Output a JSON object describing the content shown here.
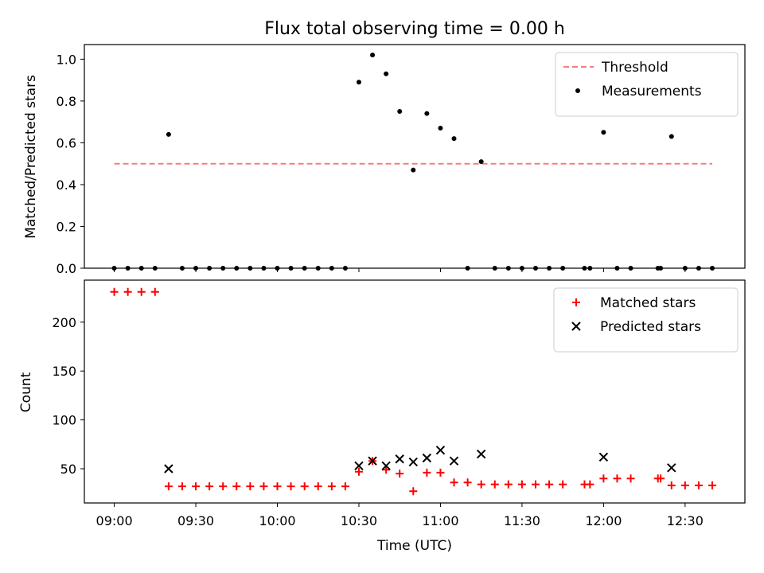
{
  "chart_data": {
    "title": "Flux total observing time = 0.00 h",
    "xlabel": "Time (UTC)",
    "x_ticks": [
      "09:00",
      "09:30",
      "10:00",
      "10:30",
      "11:00",
      "11:30",
      "12:00",
      "12:30"
    ],
    "x_tick_minutes": [
      0,
      30,
      60,
      90,
      120,
      150,
      180,
      210
    ],
    "xlim_minutes": [
      -11,
      232
    ],
    "times": [
      "09:00",
      "09:05",
      "09:10",
      "09:15",
      "09:20",
      "09:25",
      "09:30",
      "09:35",
      "09:40",
      "09:45",
      "09:50",
      "09:55",
      "10:00",
      "10:05",
      "10:10",
      "10:15",
      "10:20",
      "10:25",
      "10:30",
      "10:35",
      "10:40",
      "10:45",
      "10:50",
      "10:55",
      "11:00",
      "11:05",
      "11:10",
      "11:15",
      "11:20",
      "11:25",
      "11:30",
      "11:35",
      "11:40",
      "11:45",
      "11:53",
      "11:55",
      "12:00",
      "12:05",
      "12:10",
      "12:20",
      "12:21",
      "12:25",
      "12:30",
      "12:35",
      "12:40"
    ],
    "panels": [
      {
        "type": "scatter",
        "ylabel": "Matched/Predicted stars",
        "ylim": [
          0,
          1.07
        ],
        "y_ticks": [
          0.0,
          0.2,
          0.4,
          0.6,
          0.8,
          1.0
        ],
        "y_tick_labels": [
          "0.0",
          "0.2",
          "0.4",
          "0.6",
          "0.8",
          "1.0"
        ],
        "legend_position": "top-right",
        "threshold": {
          "name": "Threshold",
          "value": 0.5,
          "from": "09:00",
          "to": "12:40",
          "color": "#f08080"
        },
        "series": [
          {
            "name": "Measurements",
            "color": "#000000",
            "marker": "dot",
            "values": [
              0,
              0,
              0,
              0,
              0.64,
              0,
              0,
              0,
              0,
              0,
              0,
              0,
              0,
              0,
              0,
              0,
              0,
              0,
              0.89,
              1.02,
              0.93,
              0.75,
              0.47,
              0.74,
              0.67,
              0.62,
              0,
              0.51,
              0,
              0,
              0,
              0,
              0,
              0,
              0,
              0,
              0.65,
              0,
              0,
              0,
              0,
              0.63,
              0,
              0,
              0
            ]
          }
        ]
      },
      {
        "type": "scatter",
        "ylabel": "Count",
        "ylim": [
          15,
          243
        ],
        "y_ticks": [
          50,
          100,
          150,
          200
        ],
        "y_tick_labels": [
          "50",
          "100",
          "150",
          "200"
        ],
        "legend_position": "top-right",
        "series": [
          {
            "name": "Matched stars",
            "color": "#ff0000",
            "marker": "plus",
            "values": [
              231,
              231,
              231,
              231,
              32,
              32,
              32,
              32,
              32,
              32,
              32,
              32,
              32,
              32,
              32,
              32,
              32,
              32,
              47,
              58,
              49,
              45,
              27,
              46,
              46,
              36,
              36,
              34,
              34,
              34,
              34,
              34,
              34,
              34,
              34,
              34,
              40,
              40,
              40,
              40,
              40,
              33,
              33,
              33,
              33
            ]
          },
          {
            "name": "Predicted stars",
            "color": "#000000",
            "marker": "x",
            "values": [
              null,
              null,
              null,
              null,
              50,
              null,
              null,
              null,
              null,
              null,
              null,
              null,
              null,
              null,
              null,
              null,
              null,
              null,
              53,
              58,
              53,
              60,
              57,
              61,
              69,
              58,
              null,
              65,
              null,
              null,
              null,
              null,
              null,
              null,
              null,
              null,
              62,
              null,
              null,
              null,
              null,
              51,
              null,
              null,
              null
            ]
          }
        ]
      }
    ]
  }
}
